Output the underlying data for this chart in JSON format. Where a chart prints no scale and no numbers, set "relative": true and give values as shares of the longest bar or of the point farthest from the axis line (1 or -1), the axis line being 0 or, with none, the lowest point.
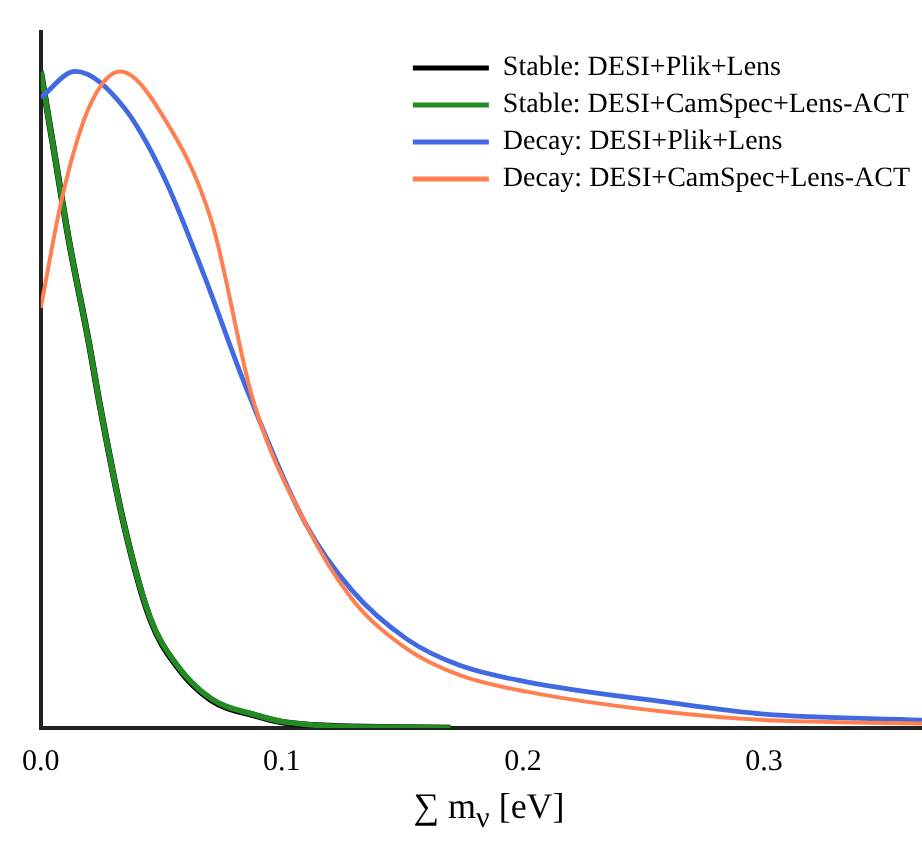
{
  "chart_data": {
    "type": "line",
    "relative": true,
    "xlabel": "∑ m$_{ν}$ [eV]",
    "xlim": [
      0,
      0.3655
    ],
    "xticks": [
      {
        "value": 0,
        "label": "0.0"
      },
      0.1,
      0.2,
      0.3
    ],
    "grid": false,
    "legend": "top right",
    "marker": "none",
    "line_style": "solid",
    "series": [
      {
        "name": "Stable: DESI+Plik+Lens",
        "color": "#000000",
        "x": [
          0,
          0.0059,
          0.0118,
          0.02,
          0.0244,
          0.0345,
          0.0454,
          0.0563,
          0.0706,
          0.09,
          0.1,
          0.12,
          0.15,
          0.17
        ],
        "values": [
          1.0,
          0.87,
          0.74,
          0.586,
          0.494,
          0.31,
          0.166,
          0.095,
          0.043,
          0.018,
          0.009,
          0.003,
          0.001,
          0.0
        ]
      },
      {
        "name": "Stable: DESI+CamSpec+Lens-ACT",
        "color": "#228b22",
        "x": [
          0,
          0.0059,
          0.0118,
          0.02,
          0.0244,
          0.0345,
          0.0454,
          0.0563,
          0.0706,
          0.09,
          0.1,
          0.12,
          0.15,
          0.17
        ],
        "values": [
          1.0,
          0.87,
          0.74,
          0.586,
          0.494,
          0.31,
          0.168,
          0.097,
          0.045,
          0.019,
          0.01,
          0.003,
          0.001,
          0.0
        ]
      },
      {
        "name": "Decay: DESI+Plik+Lens",
        "color": "#4169e1",
        "x": [
          0,
          0.0143,
          0.0345,
          0.051,
          0.068,
          0.085,
          0.11,
          0.129,
          0.152,
          0.174,
          0.202,
          0.258,
          0.3,
          0.3655
        ],
        "values": [
          0.96,
          1.0,
          0.945,
          0.84,
          0.687,
          0.52,
          0.31,
          0.21,
          0.135,
          0.095,
          0.07,
          0.04,
          0.021,
          0.012
        ]
      },
      {
        "name": "Decay: DESI+CamSpec+Lens-ACT",
        "color": "#ff7f50",
        "x": [
          0,
          0.009,
          0.02,
          0.033,
          0.051,
          0.071,
          0.088,
          0.11,
          0.129,
          0.152,
          0.174,
          0.202,
          0.258,
          0.3,
          0.3655
        ],
        "values": [
          0.64,
          0.81,
          0.945,
          1.0,
          0.93,
          0.77,
          0.5,
          0.31,
          0.197,
          0.12,
          0.08,
          0.055,
          0.025,
          0.012,
          0.007
        ]
      }
    ]
  }
}
